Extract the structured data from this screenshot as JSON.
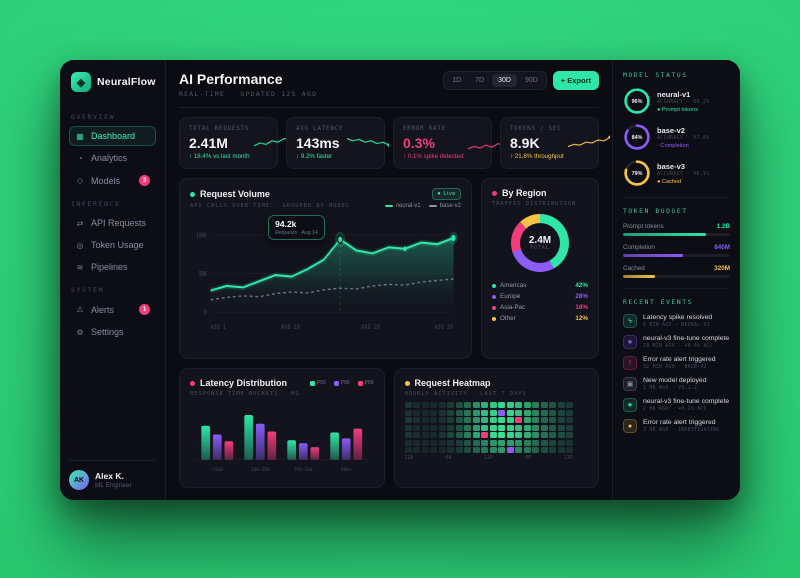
{
  "app": {
    "name": "NeuralFlow"
  },
  "sidebar": {
    "sections": [
      {
        "label": "OVERVIEW",
        "items": [
          {
            "label": "Dashboard",
            "icon": "dashboard",
            "active": true
          },
          {
            "label": "Analytics",
            "icon": "analytics"
          },
          {
            "label": "Models",
            "icon": "models",
            "badge": "3"
          }
        ]
      },
      {
        "label": "INFERENCE",
        "items": [
          {
            "label": "API Requests",
            "icon": "api-requests"
          },
          {
            "label": "Token Usage",
            "icon": "token-usage"
          },
          {
            "label": "Pipelines",
            "icon": "pipelines"
          }
        ]
      },
      {
        "label": "SYSTEM",
        "items": [
          {
            "label": "Alerts",
            "icon": "alerts",
            "badge": "1"
          },
          {
            "label": "Settings",
            "icon": "settings"
          }
        ]
      }
    ],
    "user": {
      "initials": "AK",
      "name": "Alex K.",
      "role": "ML Engineer"
    }
  },
  "header": {
    "title": "AI Performance",
    "subtitle": "REAL-TIME · UPDATED 12S AGO",
    "ranges": [
      {
        "label": "1D",
        "active": false
      },
      {
        "label": "7D",
        "active": false
      },
      {
        "label": "30D",
        "active": true
      },
      {
        "label": "90D",
        "active": false
      }
    ],
    "export_label": "+ Export"
  },
  "stats": [
    {
      "label": "TOTAL REQUESTS",
      "value": "2.41M",
      "value_color": "#F2F2F7",
      "delta": "↑ 18.4% vs last month",
      "color": "#2EE6A8",
      "spark": [
        20,
        28,
        24,
        34,
        30,
        40,
        38,
        48
      ]
    },
    {
      "label": "AVG LATENCY",
      "value": "143ms",
      "value_color": "#F2F2F7",
      "delta": "↓ 9.2% faster",
      "color": "#2EE6A8",
      "spark": [
        40,
        34,
        38,
        30,
        34,
        26,
        30,
        22
      ]
    },
    {
      "label": "ERROR RATE",
      "value": "0.3%",
      "value_color": "#F23D7B",
      "delta": "↑ 0.1% spike detected",
      "color": "#F23D7B",
      "spark": [
        12,
        18,
        14,
        22,
        16,
        26,
        20,
        30
      ]
    },
    {
      "label": "TOKENS / SEC",
      "value": "8.9K",
      "value_color": "#F2F2F7",
      "delta": "↑ 21.8% throughput",
      "color": "#F5C542",
      "spark": [
        18,
        24,
        22,
        30,
        28,
        36,
        34,
        44
      ]
    }
  ],
  "volume": {
    "title": "Request Volume",
    "subtitle": "API CALLS OVER TIME · GROUPED BY MODEL",
    "accent": "#2EE6A8",
    "live_label": "● Live",
    "legend": [
      {
        "label": "neural-v1",
        "color": "#2EE6A8"
      },
      {
        "label": "base-v2",
        "color": "#8B8FA8"
      }
    ],
    "tooltip": {
      "value": "94.2k",
      "label": "Requests · Aug 14"
    },
    "y_ticks": [
      "100K",
      "50K",
      "0"
    ],
    "x_ticks": [
      "AUG 1",
      "AUG 10",
      "AUG 20",
      "AUG 30"
    ],
    "marker_index": 8,
    "chart_data": {
      "type": "area",
      "x_range": [
        "Aug 1",
        "Aug 30"
      ],
      "series": [
        {
          "name": "neural-v1",
          "color": "#2EE6A8",
          "values": [
            28,
            34,
            32,
            40,
            48,
            46,
            56,
            68,
            94,
            80,
            76,
            84,
            82,
            90,
            88,
            96
          ]
        },
        {
          "name": "base-v2",
          "color": "#8B8FA8",
          "dashed": true,
          "values": [
            16,
            19,
            21,
            20,
            24,
            26,
            25,
            29,
            31,
            30,
            34,
            36,
            35,
            39,
            41,
            43
          ]
        }
      ],
      "ylim": [
        0,
        110
      ]
    }
  },
  "region": {
    "title": "By Region",
    "subtitle": "TRAFFIC DISTRIBUTION",
    "accent": "#F23D7B",
    "total": "2.4M",
    "total_label": "TOTAL",
    "chart_data": {
      "type": "pie",
      "segments": [
        {
          "label": "Americas",
          "pct": 42,
          "color": "#2EE6A8"
        },
        {
          "label": "Europe",
          "pct": 28,
          "color": "#8B5CF6"
        },
        {
          "label": "Asia-Pac",
          "pct": 18,
          "color": "#F23D7B"
        },
        {
          "label": "Other",
          "pct": 12,
          "color": "#F5C542"
        }
      ]
    }
  },
  "latency": {
    "title": "Latency Distribution",
    "subtitle": "RESPONSE TIME BUCKETS · MS",
    "accent": "#F23D7B",
    "chart_data": {
      "type": "bar",
      "categories": [
        "<100",
        "100-250",
        "250-500",
        "500+"
      ],
      "series": [
        {
          "name": "P50",
          "color": "#2EE6A8",
          "values": [
            70,
            92,
            40,
            56
          ]
        },
        {
          "name": "P90",
          "color": "#8B5CF6",
          "values": [
            52,
            74,
            34,
            44
          ]
        },
        {
          "name": "P99",
          "color": "#F23D7B",
          "values": [
            38,
            58,
            26,
            64
          ]
        }
      ],
      "ylim": [
        0,
        100
      ]
    }
  },
  "heatmap": {
    "title": "Request Heatmap",
    "subtitle": "HOURLY ACTIVITY · LAST 7 DAYS",
    "accent": "#F5C542",
    "hours": [
      "12A",
      "6A",
      "12P",
      "6P",
      "11P"
    ],
    "chart_data": {
      "type": "heatmap",
      "rows": 7,
      "cols": 20,
      "matrix": [
        [
          12,
          8,
          6,
          5,
          9,
          14,
          24,
          38,
          56,
          72,
          84,
          90,
          86,
          76,
          64,
          48,
          36,
          26,
          18,
          14
        ],
        [
          10,
          7,
          5,
          6,
          11,
          18,
          28,
          44,
          60,
          78,
          88,
          98,
          90,
          80,
          68,
          52,
          38,
          28,
          20,
          15
        ],
        [
          14,
          9,
          7,
          6,
          10,
          16,
          26,
          40,
          58,
          74,
          86,
          92,
          88,
          99,
          66,
          50,
          36,
          27,
          19,
          13
        ],
        [
          11,
          8,
          6,
          5,
          9,
          15,
          25,
          42,
          62,
          80,
          90,
          94,
          88,
          78,
          70,
          54,
          40,
          30,
          21,
          16
        ],
        [
          13,
          9,
          7,
          6,
          12,
          20,
          30,
          48,
          66,
          99,
          92,
          96,
          90,
          84,
          72,
          56,
          42,
          32,
          24,
          18
        ],
        [
          8,
          6,
          5,
          4,
          7,
          10,
          16,
          26,
          38,
          50,
          60,
          66,
          62,
          56,
          48,
          38,
          28,
          20,
          14,
          10
        ],
        [
          7,
          5,
          4,
          4,
          6,
          9,
          14,
          22,
          34,
          44,
          54,
          60,
          98,
          52,
          44,
          34,
          24,
          16,
          12,
          9
        ]
      ]
    }
  },
  "model_status": {
    "title": "MODEL STATUS",
    "models": [
      {
        "name": "neural-v1",
        "pct": 96,
        "color": "#2EE6A8",
        "meta": "ACCURACY · 99.2%",
        "status": "● Prompt tokens",
        "status_color": "#2EE6A8"
      },
      {
        "name": "base-v2",
        "pct": 84,
        "color": "#8B5CF6",
        "meta": "ACCURACY · 97.8%",
        "status": "· Completion",
        "status_color": "#8B5CF6"
      },
      {
        "name": "base-v3",
        "pct": 79,
        "color": "#F5C542",
        "meta": "ACCURACY · 96.1%",
        "status": "● Cached",
        "status_color": "#F5C542"
      }
    ]
  },
  "token_budget": {
    "title": "TOKEN BUDGET",
    "rows": [
      {
        "label": "Prompt tokens",
        "value": "1.2B",
        "pct": 78,
        "color": "#2EE6A8"
      },
      {
        "label": "Completion",
        "value": "840M",
        "pct": 56,
        "color": "#8B5CF6"
      },
      {
        "label": "Cached",
        "value": "320M",
        "pct": 30,
        "color": "#F5C542"
      }
    ]
  },
  "events": {
    "title": "RECENT EVENTS",
    "items": [
      {
        "title": "Latency spike resolved",
        "meta": "6 MIN AGO · NEURAL-V1",
        "icon": "bolt",
        "color": "#2EE6A8"
      },
      {
        "title": "neural-v3 fine-tune complete",
        "meta": "18 MIN AGO · +0.4% ACC",
        "icon": "spark",
        "color": "#8B5CF6"
      },
      {
        "title": "Error rate alert triggered",
        "meta": "32 MIN AGO · BASE-V2",
        "icon": "alert",
        "color": "#F23D7B"
      },
      {
        "title": "New model deployed",
        "meta": "1 HR AGO · V3.1.2",
        "icon": "box",
        "color": "#8B8FA8"
      },
      {
        "title": "neural-v3 fine-tune complete",
        "meta": "2 HR AGO · +0.2% ACC",
        "icon": "spark",
        "color": "#2EE6A8"
      },
      {
        "title": "Error rate alert triggered",
        "meta": "3 HR AGO · INVESTIGATING",
        "icon": "dot",
        "color": "#F5C542"
      }
    ]
  }
}
